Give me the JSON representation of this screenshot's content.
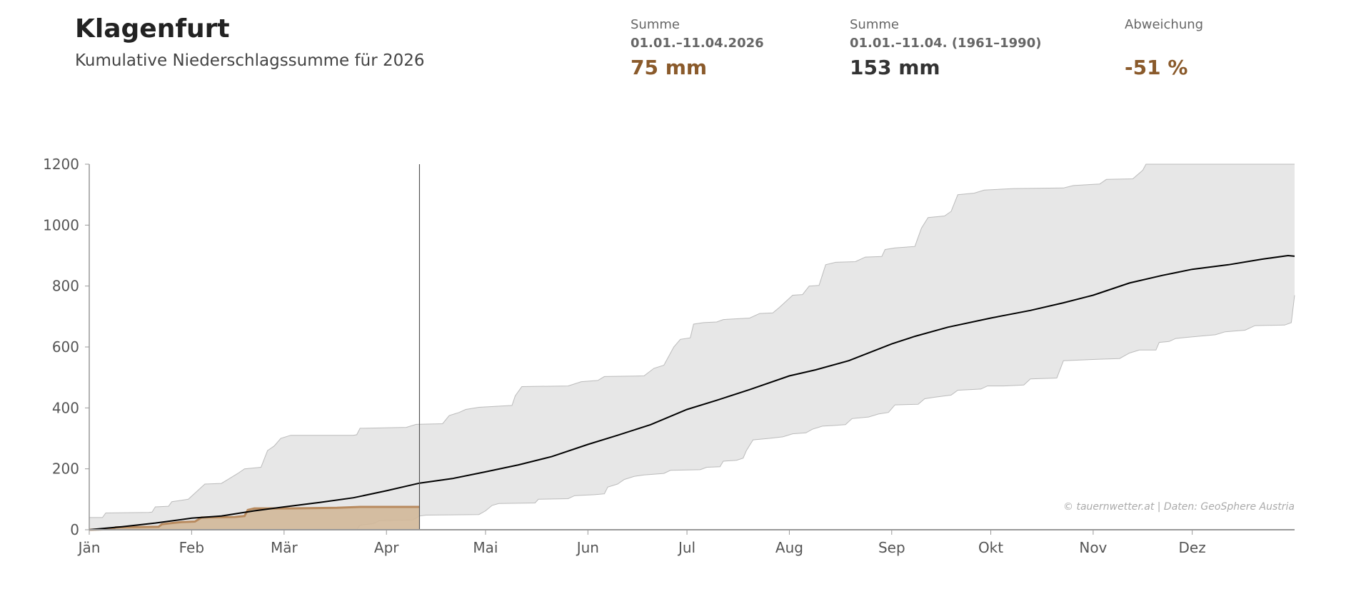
{
  "header": {
    "title": "Klagenfurt",
    "subtitle": "Kumulative Niederschlagssumme für 2026"
  },
  "stats": [
    {
      "label": "Summe",
      "period": "01.01.–11.04.2026",
      "value": "75 mm",
      "color": "#8a5a2b"
    },
    {
      "label": "Summe",
      "period": "01.01.–11.04. (1961–1990)",
      "value": "153 mm",
      "color": "#333333"
    },
    {
      "label": "Abweichung",
      "period": "",
      "value": "-51 %",
      "color": "#8a5a2b"
    }
  ],
  "chart_data": {
    "type": "area",
    "xlabel": "",
    "ylabel": "",
    "ylim": [
      0,
      1200
    ],
    "xlim_days": [
      0,
      365
    ],
    "yticks": [
      0,
      200,
      400,
      600,
      800,
      1000,
      1200
    ],
    "months": [
      {
        "label": "Jän",
        "day": 0
      },
      {
        "label": "Feb",
        "day": 31
      },
      {
        "label": "Mär",
        "day": 59
      },
      {
        "label": "Apr",
        "day": 90
      },
      {
        "label": "Mai",
        "day": 120
      },
      {
        "label": "Jun",
        "day": 151
      },
      {
        "label": "Jul",
        "day": 181
      },
      {
        "label": "Aug",
        "day": 212
      },
      {
        "label": "Sep",
        "day": 243
      },
      {
        "label": "Okt",
        "day": 273
      },
      {
        "label": "Nov",
        "day": 304
      },
      {
        "label": "Dez",
        "day": 334
      }
    ],
    "current_day": 100,
    "credit": "© tauernwetter.at | Daten: GeoSphere Austria",
    "colors": {
      "band": "#e7e7e7",
      "band_edge": "#bbbbbb",
      "mean": "#000000",
      "current_fill": "#d2b899",
      "current_line": "#b88a5e"
    },
    "series": [
      {
        "name": "Maximum 1961–1990",
        "points": [
          [
            0,
            40
          ],
          [
            4,
            40
          ],
          [
            5,
            55
          ],
          [
            18,
            57
          ],
          [
            19,
            58
          ],
          [
            20,
            75
          ],
          [
            24,
            77
          ],
          [
            25,
            92
          ],
          [
            30,
            100
          ],
          [
            33,
            130
          ],
          [
            35,
            150
          ],
          [
            40,
            152
          ],
          [
            42,
            165
          ],
          [
            45,
            185
          ],
          [
            47,
            200
          ],
          [
            52,
            205
          ],
          [
            54,
            260
          ],
          [
            56,
            275
          ],
          [
            58,
            300
          ],
          [
            61,
            310
          ],
          [
            80,
            310
          ],
          [
            81,
            312
          ],
          [
            82,
            333
          ],
          [
            96,
            336
          ],
          [
            99,
            346
          ],
          [
            107,
            348
          ],
          [
            109,
            375
          ],
          [
            112,
            385
          ],
          [
            114,
            395
          ],
          [
            118,
            402
          ],
          [
            128,
            408
          ],
          [
            129,
            440
          ],
          [
            131,
            470
          ],
          [
            145,
            472
          ],
          [
            149,
            486
          ],
          [
            154,
            490
          ],
          [
            156,
            503
          ],
          [
            168,
            505
          ],
          [
            171,
            530
          ],
          [
            174,
            540
          ],
          [
            177,
            600
          ],
          [
            179,
            625
          ],
          [
            182,
            630
          ],
          [
            183,
            675
          ],
          [
            186,
            680
          ],
          [
            190,
            682
          ],
          [
            192,
            690
          ],
          [
            200,
            695
          ],
          [
            203,
            710
          ],
          [
            207,
            712
          ],
          [
            209,
            730
          ],
          [
            213,
            770
          ],
          [
            216,
            772
          ],
          [
            218,
            800
          ],
          [
            221,
            802
          ],
          [
            223,
            870
          ],
          [
            226,
            878
          ],
          [
            232,
            880
          ],
          [
            235,
            895
          ],
          [
            240,
            897
          ],
          [
            241,
            920
          ],
          [
            244,
            925
          ],
          [
            250,
            930
          ],
          [
            252,
            990
          ],
          [
            254,
            1025
          ],
          [
            259,
            1030
          ],
          [
            261,
            1045
          ],
          [
            263,
            1100
          ],
          [
            268,
            1105
          ],
          [
            271,
            1115
          ],
          [
            280,
            1120
          ],
          [
            295,
            1122
          ],
          [
            298,
            1130
          ],
          [
            306,
            1135
          ],
          [
            308,
            1150
          ],
          [
            316,
            1152
          ],
          [
            319,
            1180
          ],
          [
            320,
            1200
          ],
          [
            365,
            1200
          ]
        ]
      },
      {
        "name": "Minimum 1961–1990",
        "points": [
          [
            0,
            0
          ],
          [
            81,
            0
          ],
          [
            82,
            15
          ],
          [
            86,
            20
          ],
          [
            88,
            30
          ],
          [
            98,
            32
          ],
          [
            100,
            45
          ],
          [
            102,
            48
          ],
          [
            118,
            50
          ],
          [
            120,
            62
          ],
          [
            122,
            80
          ],
          [
            124,
            86
          ],
          [
            135,
            88
          ],
          [
            136,
            100
          ],
          [
            145,
            102
          ],
          [
            147,
            112
          ],
          [
            153,
            115
          ],
          [
            156,
            118
          ],
          [
            157,
            140
          ],
          [
            160,
            150
          ],
          [
            162,
            165
          ],
          [
            165,
            175
          ],
          [
            168,
            180
          ],
          [
            174,
            185
          ],
          [
            176,
            195
          ],
          [
            185,
            197
          ],
          [
            187,
            205
          ],
          [
            191,
            207
          ],
          [
            192,
            225
          ],
          [
            196,
            228
          ],
          [
            198,
            235
          ],
          [
            199,
            260
          ],
          [
            201,
            295
          ],
          [
            206,
            300
          ],
          [
            210,
            305
          ],
          [
            213,
            315
          ],
          [
            217,
            318
          ],
          [
            219,
            330
          ],
          [
            222,
            340
          ],
          [
            225,
            342
          ],
          [
            229,
            345
          ],
          [
            231,
            365
          ],
          [
            236,
            370
          ],
          [
            239,
            380
          ],
          [
            242,
            385
          ],
          [
            244,
            410
          ],
          [
            251,
            412
          ],
          [
            253,
            430
          ],
          [
            256,
            435
          ],
          [
            261,
            442
          ],
          [
            263,
            458
          ],
          [
            270,
            462
          ],
          [
            272,
            472
          ],
          [
            277,
            472
          ],
          [
            283,
            475
          ],
          [
            285,
            495
          ],
          [
            293,
            498
          ],
          [
            295,
            555
          ],
          [
            306,
            560
          ],
          [
            312,
            562
          ],
          [
            315,
            580
          ],
          [
            318,
            590
          ],
          [
            323,
            590
          ],
          [
            324,
            615
          ],
          [
            327,
            618
          ],
          [
            329,
            628
          ],
          [
            333,
            632
          ],
          [
            341,
            640
          ],
          [
            344,
            650
          ],
          [
            350,
            655
          ],
          [
            353,
            670
          ],
          [
            362,
            672
          ],
          [
            364,
            680
          ],
          [
            365,
            770
          ]
        ]
      },
      {
        "name": "Mittel 1961–1990",
        "points": [
          [
            0,
            0
          ],
          [
            10,
            10
          ],
          [
            20,
            22
          ],
          [
            31,
            38
          ],
          [
            40,
            45
          ],
          [
            50,
            62
          ],
          [
            59,
            75
          ],
          [
            70,
            90
          ],
          [
            80,
            105
          ],
          [
            90,
            128
          ],
          [
            100,
            153
          ],
          [
            110,
            168
          ],
          [
            120,
            190
          ],
          [
            130,
            213
          ],
          [
            140,
            240
          ],
          [
            151,
            280
          ],
          [
            160,
            310
          ],
          [
            170,
            345
          ],
          [
            181,
            395
          ],
          [
            190,
            425
          ],
          [
            200,
            460
          ],
          [
            212,
            505
          ],
          [
            220,
            525
          ],
          [
            230,
            555
          ],
          [
            243,
            610
          ],
          [
            250,
            635
          ],
          [
            260,
            665
          ],
          [
            273,
            695
          ],
          [
            285,
            720
          ],
          [
            295,
            745
          ],
          [
            304,
            770
          ],
          [
            315,
            810
          ],
          [
            325,
            835
          ],
          [
            334,
            855
          ],
          [
            345,
            870
          ],
          [
            355,
            888
          ],
          [
            363,
            900
          ],
          [
            365,
            898
          ]
        ]
      },
      {
        "name": "2026",
        "points": [
          [
            0,
            0
          ],
          [
            7,
            2
          ],
          [
            8,
            8
          ],
          [
            21,
            10
          ],
          [
            22,
            18
          ],
          [
            25,
            22
          ],
          [
            28,
            25
          ],
          [
            32,
            27
          ],
          [
            34,
            40
          ],
          [
            44,
            42
          ],
          [
            47,
            45
          ],
          [
            48,
            65
          ],
          [
            50,
            70
          ],
          [
            60,
            70
          ],
          [
            75,
            72
          ],
          [
            82,
            75
          ],
          [
            100,
            75
          ]
        ]
      }
    ]
  }
}
